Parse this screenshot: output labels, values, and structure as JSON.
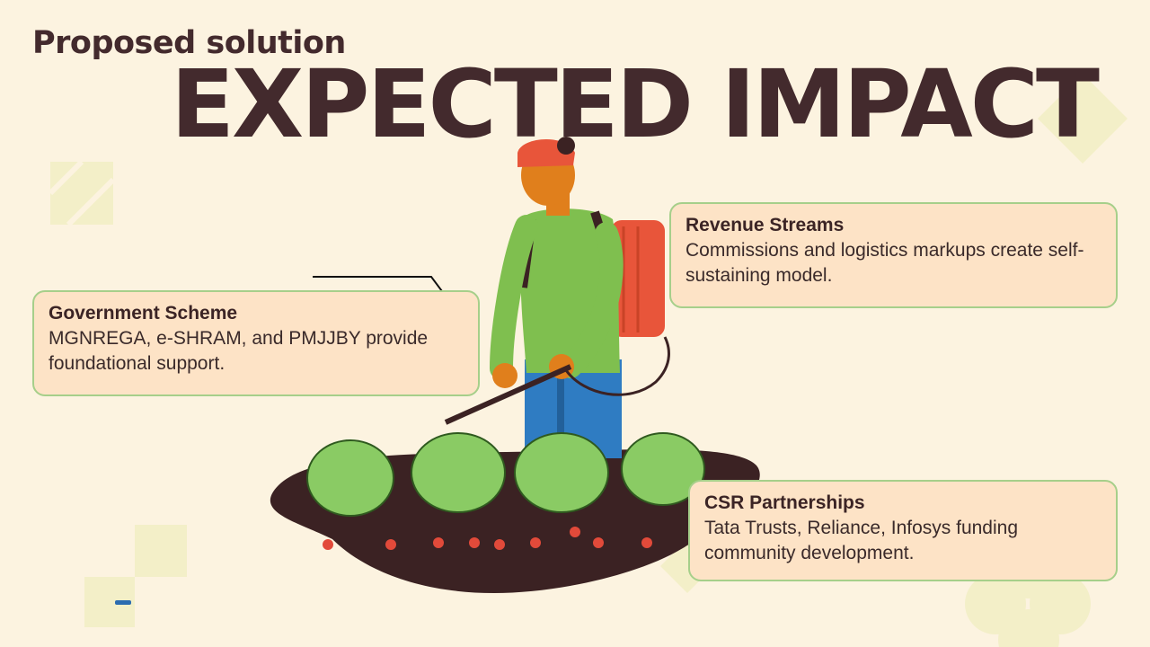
{
  "slide": {
    "subtitle": "Proposed solution",
    "title": "EXPECTED IMPACT"
  },
  "cards": {
    "government": {
      "heading": "Government Scheme",
      "body": "MGNREGA, e-SHRAM, and PMJJBY provide foundational support."
    },
    "revenue": {
      "heading": "Revenue Streams",
      "body": "Commissions and logistics markups create self-sustaining model."
    },
    "csr": {
      "heading": "CSR Partnerships",
      "body": "Tata Trusts, Reliance, Infosys funding community development."
    }
  },
  "illustration": {
    "icon": "farmer-spraying-crops-illustration"
  },
  "colors": {
    "background": "#fcf3e0",
    "title": "#432a2d",
    "card_fill": "#fde3c6",
    "card_border": "#a6cf8a",
    "decor_shapes": "#f3efc8"
  }
}
